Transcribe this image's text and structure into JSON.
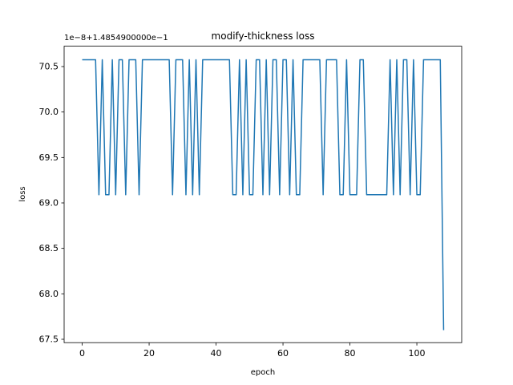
{
  "chart_data": {
    "type": "line",
    "title": "modify-thickness loss",
    "x_label": "epoch",
    "y_label": "loss",
    "y_offset_text": "1e−8+1.4854900000e−1",
    "x": [
      0,
      1,
      2,
      3,
      4,
      5,
      6,
      7,
      8,
      9,
      10,
      11,
      12,
      13,
      14,
      15,
      16,
      17,
      18,
      19,
      20,
      21,
      22,
      23,
      24,
      25,
      26,
      27,
      28,
      29,
      30,
      31,
      32,
      33,
      34,
      35,
      36,
      37,
      38,
      39,
      40,
      41,
      42,
      43,
      44,
      45,
      46,
      47,
      48,
      49,
      50,
      51,
      52,
      53,
      54,
      55,
      56,
      57,
      58,
      59,
      60,
      61,
      62,
      63,
      64,
      65,
      66,
      67,
      68,
      69,
      70,
      71,
      72,
      73,
      74,
      75,
      76,
      77,
      78,
      79,
      80,
      81,
      82,
      83,
      84,
      85,
      86,
      87,
      88,
      89,
      90,
      91,
      92,
      93,
      94,
      95,
      96,
      97,
      98,
      99,
      100,
      101,
      102,
      103,
      104,
      105,
      106,
      107,
      108
    ],
    "series": [
      {
        "name": "loss",
        "color": "#1f77b4",
        "values": [
          70.575,
          70.575,
          70.575,
          70.575,
          70.575,
          69.09,
          70.575,
          69.09,
          69.09,
          70.575,
          69.09,
          70.575,
          70.575,
          69.09,
          70.575,
          70.575,
          70.575,
          69.09,
          70.575,
          70.575,
          70.575,
          70.575,
          70.575,
          70.575,
          70.575,
          70.575,
          70.575,
          69.09,
          70.575,
          70.575,
          70.575,
          69.09,
          70.575,
          69.09,
          70.575,
          69.09,
          70.575,
          70.575,
          70.575,
          70.575,
          70.575,
          70.575,
          70.575,
          70.575,
          70.575,
          69.09,
          69.09,
          70.575,
          69.09,
          70.575,
          69.09,
          69.09,
          70.575,
          70.575,
          69.09,
          70.575,
          69.09,
          70.575,
          70.575,
          69.09,
          70.575,
          70.575,
          69.09,
          70.575,
          69.09,
          69.09,
          70.575,
          70.575,
          70.575,
          70.575,
          70.575,
          70.575,
          69.09,
          70.575,
          70.575,
          70.575,
          70.575,
          69.09,
          69.09,
          70.575,
          69.09,
          69.09,
          69.09,
          70.575,
          70.575,
          69.09,
          69.09,
          69.09,
          69.09,
          69.09,
          69.09,
          69.09,
          70.575,
          69.09,
          70.575,
          69.09,
          70.575,
          70.575,
          69.09,
          70.575,
          69.09,
          69.09,
          70.575,
          70.575,
          70.575,
          70.575,
          70.575,
          70.575,
          67.6
        ]
      }
    ],
    "xlim": [
      -5.4,
      113.4
    ],
    "ylim": [
      67.463,
      70.724
    ],
    "xticks": [
      0,
      20,
      40,
      60,
      80,
      100
    ],
    "yticks": [
      67.5,
      {
        "value": 68,
        "label": "68.0"
      },
      68.5,
      {
        "value": 69,
        "label": "69.0"
      },
      69.5,
      {
        "value": 70,
        "label": "70.0"
      },
      70.5
    ],
    "grid": false
  }
}
